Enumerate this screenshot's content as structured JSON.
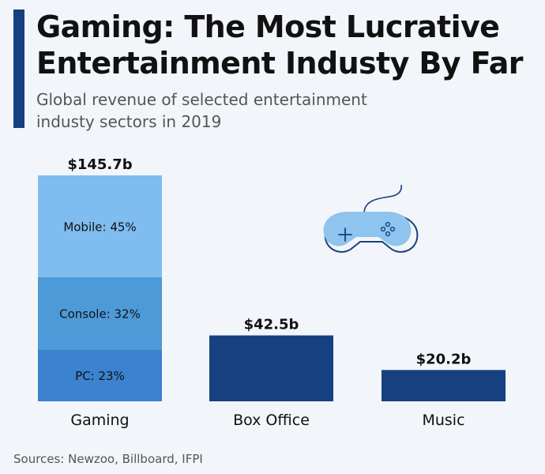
{
  "header": {
    "title_line1": "Gaming: The Most Lucrative",
    "title_line2": "Entertainment Industy By Far",
    "subtitle_line1": "Global revenue of selected entertainment",
    "subtitle_line2": "industy sectors in 2019"
  },
  "footer": {
    "source": "Sources: Newzoo, Billboard, IFPI"
  },
  "colors": {
    "mobile": "#7fbcef",
    "console": "#4d9ad8",
    "pc": "#3b82cf",
    "bar": "#16407f",
    "icon_fill": "#8ec4ee",
    "icon_stroke": "#16407f"
  },
  "chart_data": {
    "type": "bar",
    "title": "Gaming: The Most Lucrative Entertainment Industy By Far",
    "subtitle": "Global revenue of selected entertainment industy sectors in 2019",
    "unit": "billion USD",
    "ylim": [
      0,
      145.7
    ],
    "categories": [
      "Gaming",
      "Box Office",
      "Music"
    ],
    "values": [
      145.7,
      42.5,
      20.2
    ],
    "value_labels": [
      "$145.7b",
      "$42.5b",
      "$20.2b"
    ],
    "gaming_breakdown": [
      {
        "name": "PC",
        "share": 23,
        "label": "PC: 23%"
      },
      {
        "name": "Console",
        "share": 32,
        "label": "Console: 32%"
      },
      {
        "name": "Mobile",
        "share": 45,
        "label": "Mobile: 45%"
      }
    ],
    "icon": "gamepad-icon"
  }
}
